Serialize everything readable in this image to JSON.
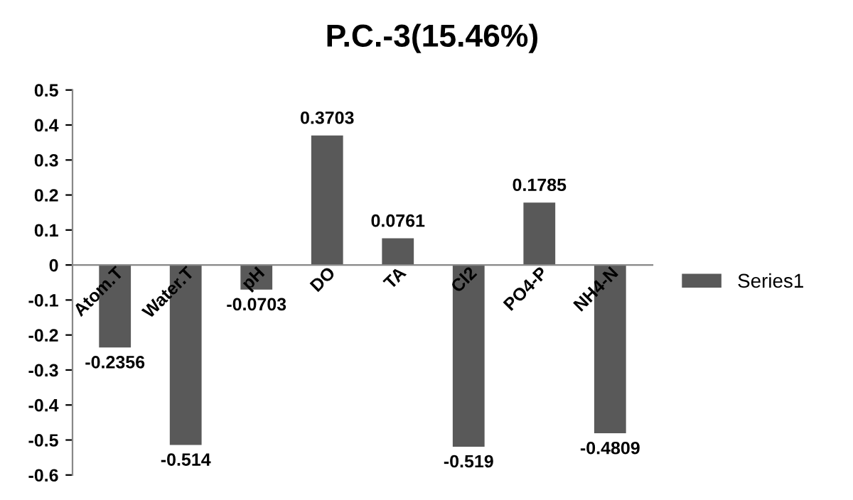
{
  "chart_data": {
    "type": "bar",
    "title": "P.C.-3(15.46%)",
    "categories": [
      "Atom.T",
      "Water.T",
      "pH",
      "DO",
      "TA",
      "Cl2",
      "PO4-P",
      "NH4-N"
    ],
    "series": [
      {
        "name": "Series1",
        "color": "#595959",
        "values": [
          -0.2356,
          -0.514,
          -0.0703,
          0.3703,
          0.0761,
          -0.519,
          0.1785,
          -0.4809
        ]
      }
    ],
    "ylim": [
      -0.6,
      0.5
    ],
    "yticks": [
      -0.6,
      -0.5,
      -0.4,
      -0.3,
      -0.2,
      -0.1,
      0,
      0.1,
      0.2,
      0.3,
      0.4,
      0.5
    ],
    "data_labels": true,
    "grid": false,
    "legend": "right"
  }
}
